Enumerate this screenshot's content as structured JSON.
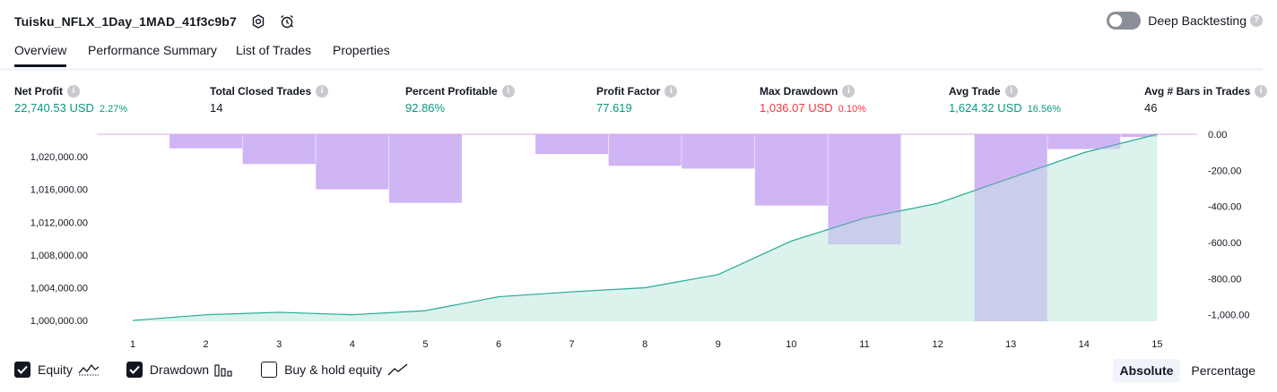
{
  "header": {
    "strategy_name": "Tuisku_NFLX_1Day_1MAD_41f3c9b7",
    "deep_backtesting_label": "Deep Backtesting",
    "deep_backtesting_enabled": false
  },
  "tabs": [
    {
      "label": "Overview",
      "active": true
    },
    {
      "label": "Performance Summary",
      "active": false
    },
    {
      "label": "List of Trades",
      "active": false
    },
    {
      "label": "Properties",
      "active": false
    }
  ],
  "metrics": {
    "net_profit": {
      "label": "Net Profit",
      "value": "22,740.53 USD",
      "pct": "2.27%"
    },
    "total_closed_trades": {
      "label": "Total Closed Trades",
      "value": "14"
    },
    "percent_profitable": {
      "label": "Percent Profitable",
      "value": "92.86%"
    },
    "profit_factor": {
      "label": "Profit Factor",
      "value": "77.619"
    },
    "max_drawdown": {
      "label": "Max Drawdown",
      "value": "1,036.07 USD",
      "pct": "0.10%"
    },
    "avg_trade": {
      "label": "Avg Trade",
      "value": "1,624.32 USD",
      "pct": "16.56%"
    },
    "avg_bars": {
      "label": "Avg # Bars in Trades",
      "value": "46"
    }
  },
  "chart_data": {
    "type": "line",
    "x": [
      1,
      2,
      3,
      4,
      5,
      6,
      7,
      8,
      9,
      10,
      11,
      12,
      13,
      14,
      15
    ],
    "x_tick_labels": [
      "1",
      "2",
      "3",
      "4",
      "5",
      "6",
      "7",
      "8",
      "9",
      "10",
      "11",
      "12",
      "13",
      "14",
      "15"
    ],
    "series": [
      {
        "name": "Equity",
        "axis": "left",
        "style": "line+area",
        "values": [
          1000000,
          1000700,
          1001000,
          1000700,
          1001200,
          1002900,
          1003500,
          1004000,
          1005600,
          1009700,
          1012500,
          1014300,
          1017400,
          1020500,
          1022740
        ]
      },
      {
        "name": "Drawdown",
        "axis": "right",
        "style": "bar",
        "values": [
          0,
          -78,
          -165,
          -305,
          -380,
          0,
          -110,
          -175,
          -190,
          -395,
          -610,
          0,
          -1036,
          -82,
          -15
        ]
      }
    ],
    "left_axis": {
      "ticks": [
        "1,000,000.00",
        "1,004,000.00",
        "1,008,000.00",
        "1,012,000.00",
        "1,016,000.00",
        "1,020,000.00"
      ],
      "ylim": [
        999900,
        1022740
      ]
    },
    "right_axis": {
      "ticks": [
        "0.00",
        "-200.00",
        "-400.00",
        "-600.00",
        "-800.00",
        "-1,000.00"
      ],
      "ylim": [
        -1036,
        0
      ]
    },
    "colors": {
      "equity_line": "#22ab94",
      "equity_fill": "#d6f0ea",
      "drawdown_bar": "#e1c4fb",
      "zero_line": "#e3a6e8"
    }
  },
  "legend": [
    {
      "label": "Equity",
      "checked": true
    },
    {
      "label": "Drawdown",
      "checked": true
    },
    {
      "label": "Buy & hold equity",
      "checked": false
    }
  ],
  "view_mode": {
    "absolute_label": "Absolute",
    "percentage_label": "Percentage",
    "selected": "Absolute"
  }
}
